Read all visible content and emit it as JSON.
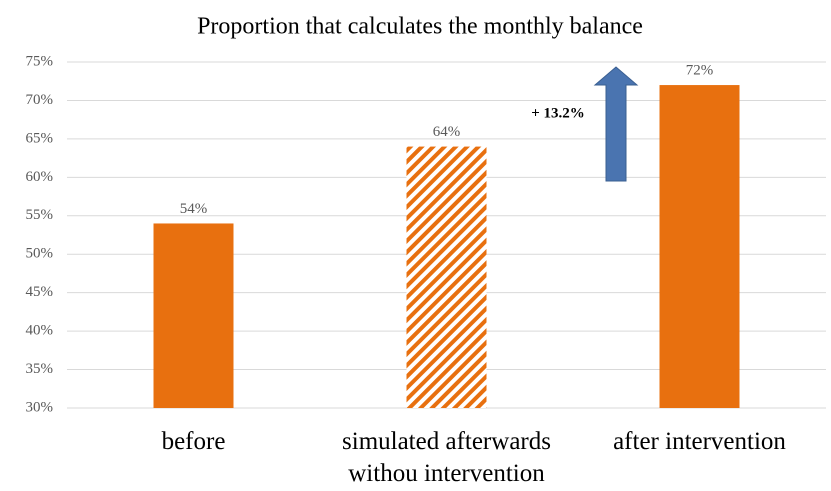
{
  "chart_data": {
    "type": "bar",
    "title": "Proportion that calculates the monthly balance",
    "categories": [
      "before",
      "simulated afterwards\nwithou intervention",
      "after intervention"
    ],
    "values": [
      54,
      64,
      72
    ],
    "value_labels": [
      "54%",
      "64%",
      "72%"
    ],
    "color": "#e8700f",
    "fills": [
      "solid",
      "hatched",
      "solid"
    ],
    "ylim": [
      30,
      75
    ],
    "yticks": [
      {
        "value": 30,
        "label": "30%"
      },
      {
        "value": 35,
        "label": "35%"
      },
      {
        "value": 40,
        "label": "40%"
      },
      {
        "value": 45,
        "label": "45%"
      },
      {
        "value": 50,
        "label": "50%"
      },
      {
        "value": 55,
        "label": "55%"
      },
      {
        "value": 60,
        "label": "60%"
      },
      {
        "value": 65,
        "label": "65%"
      },
      {
        "value": 70,
        "label": "70%"
      },
      {
        "value": 75,
        "label": "75%"
      }
    ],
    "grid": true,
    "annotation": "+ 13.2%"
  }
}
